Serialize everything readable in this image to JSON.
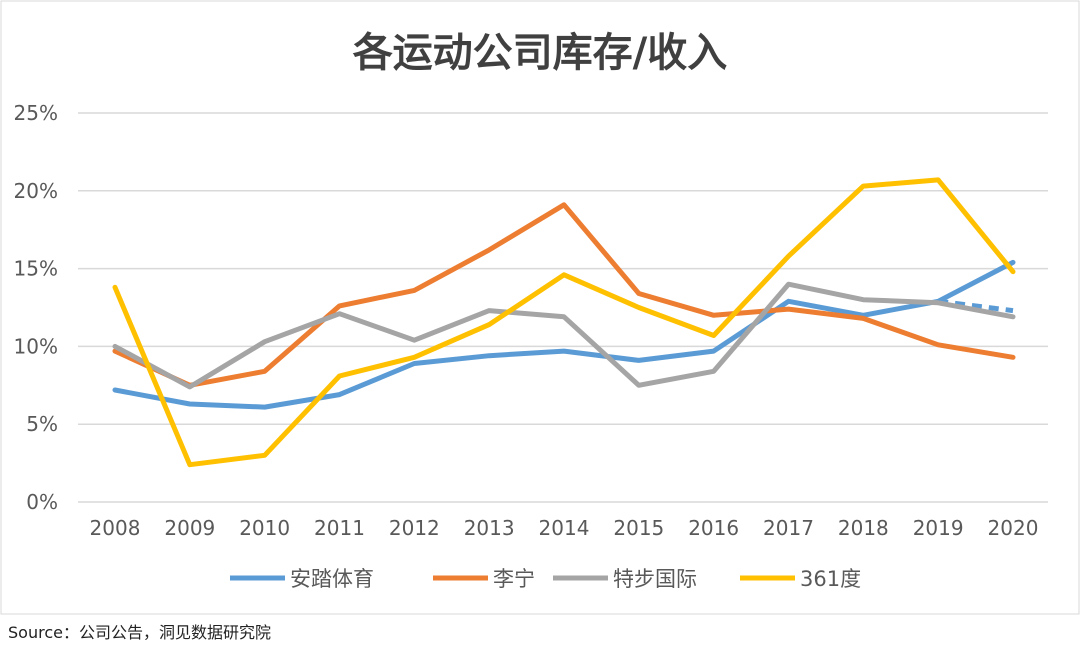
{
  "chart_data": {
    "type": "line",
    "title": "各运动公司库存/收入",
    "xlabel": "",
    "ylabel": "",
    "categories": [
      "2008",
      "2009",
      "2010",
      "2011",
      "2012",
      "2013",
      "2014",
      "2015",
      "2016",
      "2017",
      "2018",
      "2019",
      "2020"
    ],
    "ylim": [
      0,
      25
    ],
    "yticks": [
      "0%",
      "5%",
      "10%",
      "15%",
      "20%",
      "25%"
    ],
    "grid": true,
    "legend_position": "bottom",
    "series": [
      {
        "name": "安踏体育",
        "color": "#5B9BD5",
        "values": [
          7.2,
          6.3,
          6.1,
          6.9,
          8.9,
          9.4,
          9.7,
          9.1,
          9.7,
          12.9,
          12.0,
          12.9,
          15.4
        ],
        "dashed_end": 12.3
      },
      {
        "name": "李宁",
        "color": "#ED7D31",
        "values": [
          9.7,
          7.5,
          8.4,
          12.6,
          13.6,
          16.2,
          19.1,
          13.4,
          12.0,
          12.4,
          11.8,
          10.1,
          9.3
        ]
      },
      {
        "name": "特步国际",
        "color": "#A5A5A5",
        "values": [
          10.0,
          7.4,
          10.3,
          12.1,
          10.4,
          12.3,
          11.9,
          7.5,
          8.4,
          14.0,
          13.0,
          12.8,
          11.9
        ]
      },
      {
        "name": "361度",
        "color": "#FFC000",
        "values": [
          13.8,
          2.4,
          3.0,
          8.1,
          9.3,
          11.4,
          14.6,
          12.5,
          10.7,
          15.8,
          20.3,
          20.7,
          14.8
        ]
      }
    ]
  },
  "source": {
    "label": "Source：",
    "text": "公司公告，洞见数据研究院"
  }
}
